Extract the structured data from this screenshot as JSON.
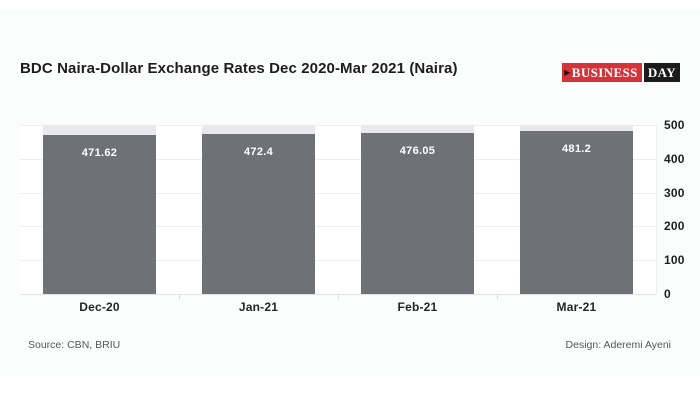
{
  "header": {
    "title": "BDC Naira-Dollar Exchange Rates Dec 2020-Mar 2021 (Naira)"
  },
  "logo": {
    "arrow": "▶",
    "business": "BUSINESS",
    "day": "DAY",
    "red_color": "#d5333a",
    "black_color": "#1b1b1b"
  },
  "footer": {
    "source": "Source: CBN, BRIU",
    "design": "Design: Aderemi Ayeni"
  },
  "chart_data": {
    "type": "bar",
    "title": "BDC Naira-Dollar Exchange Rates Dec 2020-Mar 2021 (Naira)",
    "categories": [
      "Dec-20",
      "Jan-21",
      "Feb-21",
      "Mar-21"
    ],
    "values": [
      471.62,
      472.4,
      476.05,
      481.2
    ],
    "value_labels": [
      "471.62",
      "472.4",
      "476.05",
      "481.2"
    ],
    "xlabel": "",
    "ylabel": "",
    "ylim": [
      0,
      500
    ],
    "yticks": [
      0,
      100,
      200,
      300,
      400,
      500
    ],
    "yaxis_side": "right",
    "grid": "horizontal",
    "legend": "none",
    "bar_color": "#6e7176",
    "remainder_to_max_color": "#e9e9ed",
    "value_label_color": "#ffffff"
  }
}
